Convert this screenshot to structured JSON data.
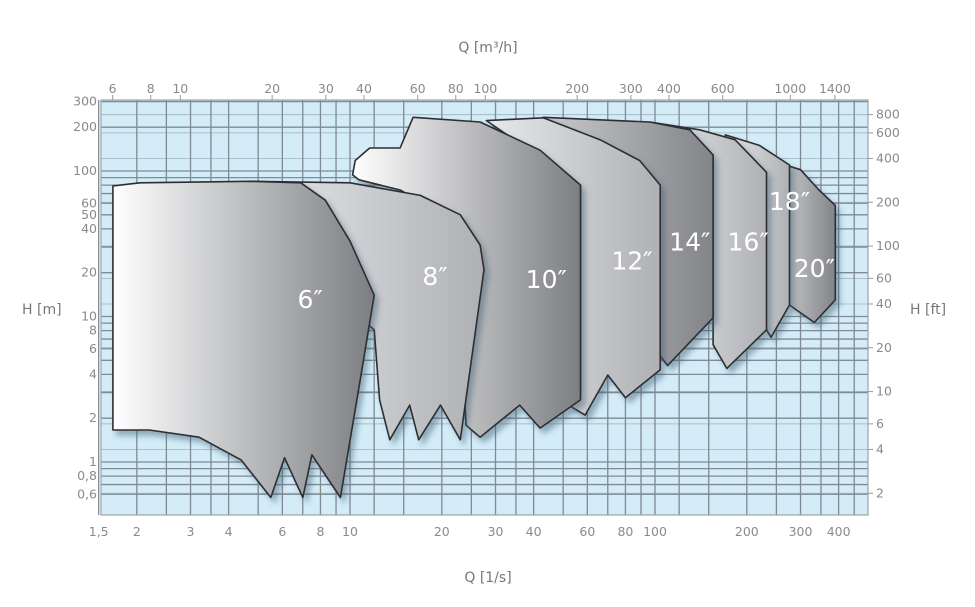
{
  "chart_data": {
    "type": "area",
    "title": "",
    "x_top_label": "Q [m³/h]",
    "x_bottom_label": "Q [1/s]",
    "y_left_label": "H [m]",
    "y_right_label": "H [ft]",
    "x_scale": "log",
    "y_scale": "log",
    "xlim": [
      1.5,
      500
    ],
    "ylim": [
      0.43,
      310
    ],
    "grid": true,
    "plot_background": "#d3ecf8",
    "grid_color": "#7f8a92",
    "x_bottom_ticks": [
      "1,5",
      "2",
      "3",
      "4",
      "6",
      "8",
      "10",
      "20",
      "30",
      "40",
      "60",
      "80",
      "100",
      "200",
      "300",
      "400"
    ],
    "x_bottom_tick_values": [
      1.5,
      2,
      3,
      4,
      6,
      8,
      10,
      20,
      30,
      40,
      60,
      80,
      100,
      200,
      300,
      400
    ],
    "x_top_ticks": [
      "6",
      "8",
      "10",
      "20",
      "30",
      "40",
      "60",
      "80",
      "100",
      "200",
      "300",
      "400",
      "600",
      "1000",
      "1400"
    ],
    "x_top_tick_values": [
      6,
      8,
      10,
      20,
      30,
      40,
      60,
      80,
      100,
      200,
      300,
      400,
      600,
      1000,
      1400
    ],
    "y_left_ticks": [
      "300",
      "200",
      "100",
      "60",
      "50",
      "40",
      "20",
      "10",
      "8",
      "6",
      "4",
      "2",
      "1",
      "0,8",
      "0,6"
    ],
    "y_left_tick_values": [
      300,
      200,
      100,
      60,
      50,
      40,
      20,
      10,
      8,
      6,
      4,
      2,
      1,
      0.8,
      0.6
    ],
    "y_right_ticks": [
      "800",
      "600",
      "400",
      "200",
      "100",
      "60",
      "40",
      "20",
      "10",
      "6",
      "4",
      "2"
    ],
    "y_right_tick_values": [
      800,
      600,
      400,
      200,
      100,
      60,
      40,
      20,
      10,
      6,
      4,
      2
    ],
    "series": [
      {
        "name": "20″",
        "label_at": [
          333,
          18.7
        ],
        "points": [
          [
            260,
            112
          ],
          [
            300,
            102
          ],
          [
            345,
            74
          ],
          [
            390,
            58
          ],
          [
            390,
            13
          ],
          [
            333,
            9.1
          ],
          [
            276,
            12
          ]
        ]
      },
      {
        "name": "18″",
        "label_at": [
          276,
          54
        ],
        "points": [
          [
            170,
            177
          ],
          [
            220,
            150
          ],
          [
            276,
            110
          ],
          [
            276,
            12
          ],
          [
            240,
            7.2
          ],
          [
            232,
            8.1
          ]
        ]
      },
      {
        "name": "16″",
        "label_at": [
          202,
          28.5
        ],
        "points": [
          [
            96,
            217
          ],
          [
            140,
            192
          ],
          [
            183,
            164
          ],
          [
            232,
            98
          ],
          [
            232,
            8.1
          ],
          [
            172,
            4.4
          ],
          [
            155,
            6.4
          ],
          [
            155,
            129
          ]
        ]
      },
      {
        "name": "14″",
        "label_at": [
          130,
          28.5
        ],
        "points": [
          [
            43,
            234
          ],
          [
            96,
            217
          ],
          [
            130,
            192
          ],
          [
            155,
            129
          ],
          [
            155,
            9.8
          ],
          [
            110,
            4.6
          ],
          [
            89,
            8.1
          ],
          [
            104,
            80
          ]
        ]
      },
      {
        "name": "12″",
        "label_at": [
          84,
          21
        ],
        "points": [
          [
            28,
            222
          ],
          [
            43,
            232
          ],
          [
            66,
            164
          ],
          [
            89,
            118
          ],
          [
            104,
            80
          ],
          [
            104,
            4.3
          ],
          [
            80,
            2.76
          ],
          [
            70,
            3.96
          ],
          [
            59,
            2.1
          ],
          [
            52,
            2.46
          ],
          [
            57,
            2.9
          ],
          [
            57,
            80
          ]
        ]
      },
      {
        "name": "10″",
        "label_at": [
          44,
          15.7
        ],
        "points": [
          [
            10.2,
            94
          ],
          [
            10.4,
            118
          ],
          [
            11.6,
            144
          ],
          [
            14.6,
            144
          ],
          [
            16.1,
            234
          ],
          [
            26.7,
            217
          ],
          [
            42,
            139
          ],
          [
            57,
            80
          ],
          [
            57,
            2.67
          ],
          [
            42,
            1.71
          ],
          [
            36,
            2.46
          ],
          [
            26.7,
            1.48
          ],
          [
            24,
            1.79
          ],
          [
            23,
            13
          ],
          [
            24.7,
            39
          ],
          [
            14.6,
            74
          ],
          [
            10.7,
            87
          ]
        ]
      },
      {
        "name": "8″",
        "label_at": [
          19,
          16.4
        ],
        "points": [
          [
            4.7,
            85
          ],
          [
            10,
            83
          ],
          [
            17,
            68
          ],
          [
            23,
            50
          ],
          [
            26.7,
            31
          ],
          [
            27.5,
            21
          ],
          [
            23,
            1.42
          ],
          [
            19.8,
            2.46
          ],
          [
            16.8,
            1.42
          ],
          [
            15.7,
            2.46
          ],
          [
            13.5,
            1.42
          ],
          [
            12.5,
            2.67
          ],
          [
            12,
            8.1
          ],
          [
            9.3,
            13
          ],
          [
            6.9,
            46
          ]
        ]
      },
      {
        "name": "6″",
        "label_at": [
          7.4,
          11.4
        ],
        "points": [
          [
            1.67,
            79
          ],
          [
            2.05,
            83
          ],
          [
            4.7,
            85
          ],
          [
            6.9,
            83
          ],
          [
            8.3,
            63
          ],
          [
            10,
            33
          ],
          [
            12,
            14
          ],
          [
            10.8,
            3.66
          ],
          [
            9.3,
            0.57
          ],
          [
            7.5,
            1.12
          ],
          [
            7,
            0.57
          ],
          [
            6.1,
            1.07
          ],
          [
            5.5,
            0.57
          ],
          [
            4.4,
            1.03
          ],
          [
            3.2,
            1.48
          ],
          [
            2.2,
            1.66
          ],
          [
            1.67,
            1.66
          ]
        ]
      }
    ]
  }
}
